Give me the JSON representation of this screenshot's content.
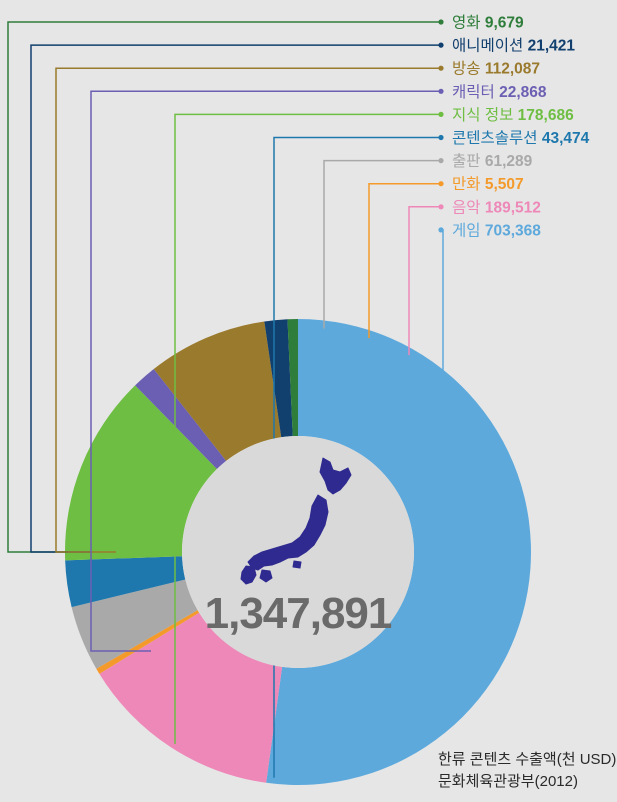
{
  "chart_data": {
    "type": "donut",
    "total": "1,347,891",
    "unit_caption": "한류 콘텐츠 수출액(천 USD)",
    "source": "문화체육관광부(2012)",
    "series": [
      {
        "name": "게임",
        "label": "703,368",
        "value": 703368,
        "color": "#5ea9dc"
      },
      {
        "name": "음악",
        "label": "189,512",
        "value": 189512,
        "color": "#ee88b8"
      },
      {
        "name": "만화",
        "label": "5,507",
        "value": 5507,
        "color": "#f39a2b"
      },
      {
        "name": "출판",
        "label": "61,289",
        "value": 61289,
        "color": "#a9a9a9"
      },
      {
        "name": "콘텐츠솔루션",
        "label": "43,474",
        "value": 43474,
        "color": "#1e78ad"
      },
      {
        "name": "지식 정보",
        "label": "178,686",
        "value": 178686,
        "color": "#6fbe44"
      },
      {
        "name": "캐릭터",
        "label": "22,868",
        "value": 22868,
        "color": "#6b5fb3"
      },
      {
        "name": "방송",
        "label": "112,087",
        "value": 112087,
        "color": "#9a7a2c"
      },
      {
        "name": "애니메이션",
        "label": "21,421",
        "value": 21421,
        "color": "#113f6e"
      },
      {
        "name": "영화",
        "label": "9,679",
        "value": 9679,
        "color": "#2e7d3a"
      }
    ],
    "legend_order": [
      "영화",
      "애니메이션",
      "방송",
      "캐릭터",
      "지식 정보",
      "콘텐츠솔루션",
      "출판",
      "만화",
      "음악",
      "게임"
    ]
  },
  "map_icon": "japan-map-icon",
  "colors": {
    "background": "#e6e6e6",
    "center": "#d9d9d9",
    "map": "#2f2a8f",
    "total_text": "#6a6a6a"
  }
}
